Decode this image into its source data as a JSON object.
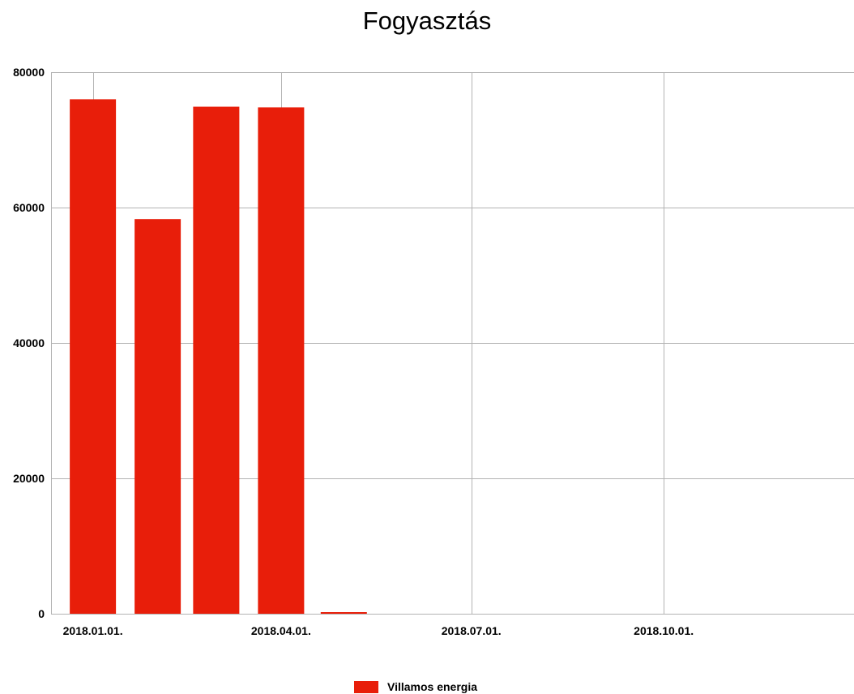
{
  "chart_data": {
    "type": "bar",
    "title": "Fogyasztás",
    "xlabel": "",
    "ylabel": "",
    "x_axis_type": "date",
    "xlim": [
      "2017-12-12",
      "2018-12-31"
    ],
    "ylim": [
      0,
      80000
    ],
    "y_ticks": [
      0,
      20000,
      40000,
      60000,
      80000
    ],
    "x_ticks": [
      {
        "date": "2018-01-01",
        "label": "2018.01.01."
      },
      {
        "date": "2018-04-01",
        "label": "2018.04.01."
      },
      {
        "date": "2018-07-01",
        "label": "2018.07.01."
      },
      {
        "date": "2018-10-01",
        "label": "2018.10.01."
      }
    ],
    "grid": true,
    "legend_position": "bottom-center",
    "series": [
      {
        "name": "Villamos energia",
        "color": "#e81e0a",
        "x": [
          "2018-01-01",
          "2018-02-01",
          "2018-03-01",
          "2018-04-01",
          "2018-05-01"
        ],
        "values": [
          76000,
          58300,
          74900,
          74800,
          200
        ]
      }
    ]
  }
}
